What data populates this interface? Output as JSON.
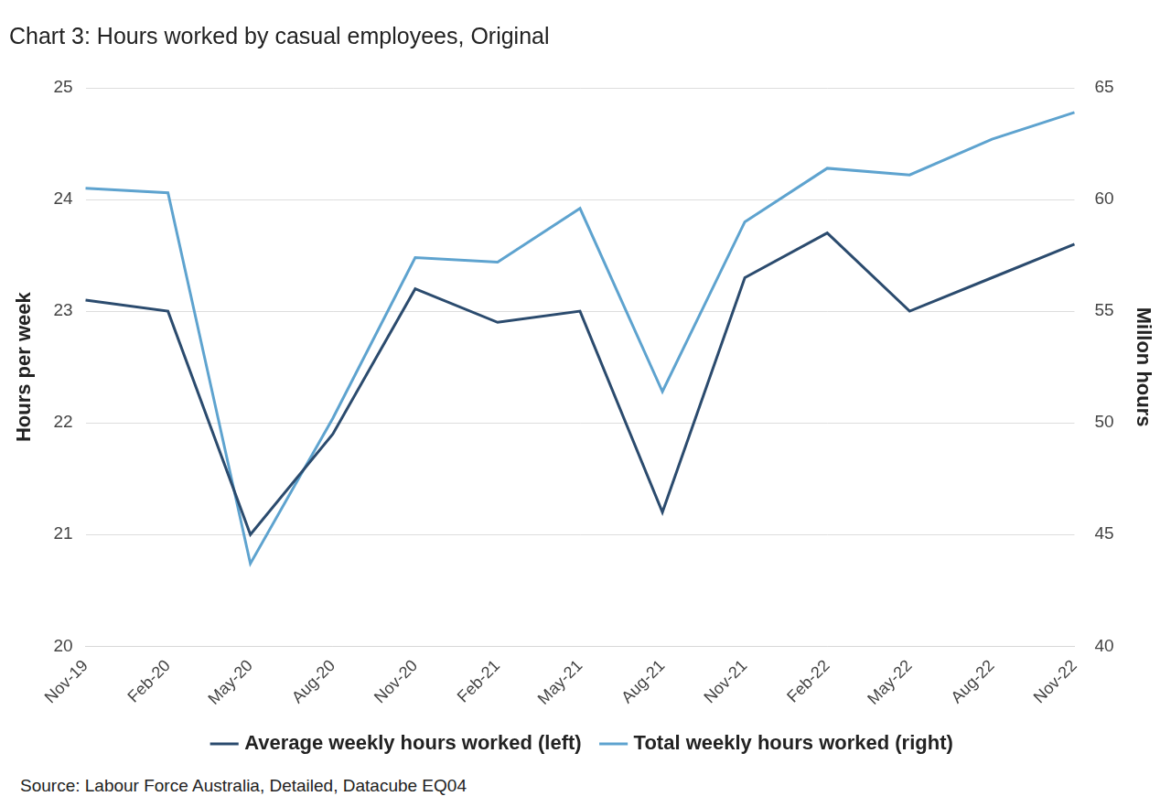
{
  "chart_data": {
    "type": "line",
    "title": "Chart 3: Hours worked by casual employees, Original",
    "source": "Source: Labour Force Australia, Detailed, Datacube EQ04",
    "y_label": "Hours per week",
    "y2_label": "Millon hours",
    "categories": [
      "Nov-19",
      "Feb-20",
      "May-20",
      "Aug-20",
      "Nov-20",
      "Feb-21",
      "May-21",
      "Aug-21",
      "Nov-21",
      "Feb-22",
      "May-22",
      "Aug-22",
      "Nov-22"
    ],
    "series": [
      {
        "name": "Average weekly hours worked (left)",
        "color": "#2b4b6e",
        "axis": "y",
        "values": [
          23.1,
          23.0,
          21.0,
          21.9,
          23.2,
          22.9,
          23.0,
          21.2,
          23.3,
          23.7,
          23.0,
          23.3,
          23.6
        ]
      },
      {
        "name": "Total weekly hours worked (right)",
        "color": "#5ea3cf",
        "axis": "y2",
        "values": [
          60.5,
          60.3,
          43.7,
          50.2,
          57.4,
          57.2,
          59.6,
          51.4,
          59.0,
          61.4,
          61.1,
          62.7,
          63.9
        ]
      }
    ],
    "ylim": [
      20,
      25
    ],
    "yticks": [
      20,
      21,
      22,
      23,
      24,
      25
    ],
    "y2lim": [
      40,
      65
    ],
    "y2ticks": [
      40,
      45,
      50,
      55,
      60,
      65
    ],
    "grid": true,
    "legend": "bottom"
  }
}
